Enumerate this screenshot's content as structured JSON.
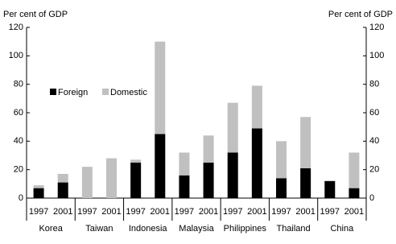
{
  "chart_data": {
    "type": "stacked-bar",
    "y_label": "Per cent of GDP",
    "y2_label": "Per cent of GDP",
    "categories": [
      "1997",
      "2001",
      "1997",
      "2001",
      "1997",
      "2001",
      "1997",
      "2001",
      "1997",
      "2001",
      "1997",
      "2001",
      "1997",
      "2001"
    ],
    "groups": [
      "Korea",
      "Taiwan",
      "Indonesia",
      "Malaysia",
      "Philippines",
      "Thailand",
      "China"
    ],
    "series": [
      {
        "name": "Foreign",
        "color": "#000000",
        "values": [
          7,
          11,
          0,
          0,
          25,
          45,
          16,
          25,
          32,
          49,
          14,
          21,
          12,
          7
        ]
      },
      {
        "name": "Domestic",
        "color": "#c0c0c0",
        "values": [
          2,
          6,
          22,
          28,
          2,
          65,
          16,
          19,
          35,
          30,
          26,
          36,
          0,
          25
        ]
      }
    ],
    "ylim": [
      0,
      120
    ],
    "yticks": [
      0,
      20,
      40,
      60,
      80,
      100,
      120
    ],
    "y2lim": [
      0,
      120
    ],
    "y2ticks": [
      0,
      20,
      40,
      60,
      80,
      100,
      120
    ]
  }
}
